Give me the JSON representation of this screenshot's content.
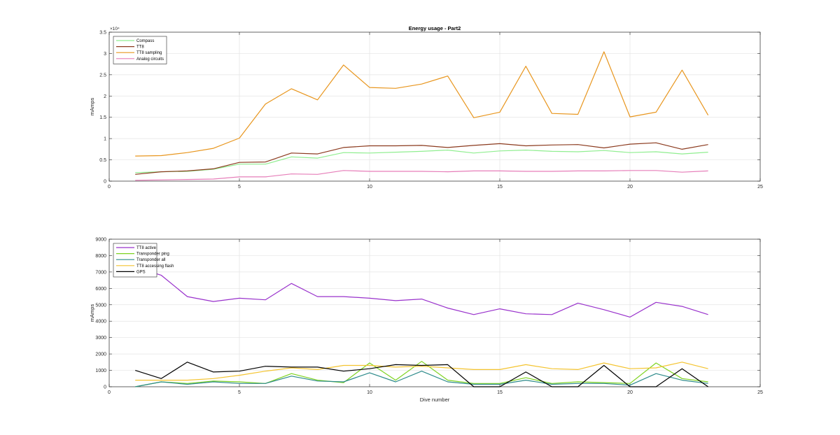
{
  "chart_data": [
    {
      "type": "line",
      "title": "Energy usage - Part2",
      "xlabel": "",
      "ylabel": "mAmps",
      "xlim": [
        0,
        25
      ],
      "ylim": [
        0,
        35000
      ],
      "xticks": [
        0,
        5,
        10,
        15,
        20,
        25
      ],
      "yticks": [
        0,
        5000,
        10000,
        15000,
        20000,
        25000,
        30000,
        35000
      ],
      "ytick_labels": [
        "0",
        "0.5",
        "1",
        "1.5",
        "2",
        "2.5",
        "3",
        "3.5"
      ],
      "y_exponent_label": "×10⁴",
      "grid": true,
      "legend_position": "top-left",
      "x": [
        1,
        2,
        3,
        4,
        5,
        6,
        7,
        8,
        9,
        10,
        11,
        12,
        13,
        14,
        15,
        16,
        17,
        18,
        19,
        20,
        21,
        22,
        23
      ],
      "series": [
        {
          "name": "Compass",
          "color": "#90ee90",
          "values": [
            2000,
            2200,
            2300,
            2800,
            4000,
            4000,
            5700,
            5400,
            6700,
            6600,
            6800,
            7000,
            7300,
            6600,
            7100,
            7300,
            7000,
            6900,
            7200,
            6700,
            6900,
            6400,
            6800
          ]
        },
        {
          "name": "TT8",
          "color": "#8b3a1e",
          "values": [
            1600,
            2200,
            2400,
            2900,
            4400,
            4500,
            6600,
            6400,
            7900,
            8300,
            8300,
            8400,
            7900,
            8400,
            8800,
            8300,
            8500,
            8600,
            7800,
            8700,
            9000,
            7500,
            8600
          ]
        },
        {
          "name": "TT8 sampling",
          "color": "#e8961e",
          "values": [
            5900,
            6000,
            6700,
            7700,
            10100,
            18100,
            21700,
            19100,
            27300,
            22000,
            21800,
            22800,
            24700,
            14900,
            16200,
            27000,
            15900,
            15700,
            30400,
            15100,
            16200,
            26100,
            15500
          ]
        },
        {
          "name": "Analog circuits",
          "color": "#e67eb9",
          "values": [
            200,
            300,
            400,
            500,
            1000,
            1000,
            1700,
            1600,
            2500,
            2300,
            2300,
            2300,
            2200,
            2400,
            2400,
            2300,
            2300,
            2400,
            2400,
            2500,
            2500,
            2100,
            2400
          ]
        }
      ]
    },
    {
      "type": "line",
      "title": "",
      "xlabel": "Dive number",
      "ylabel": "mAmps",
      "xlim": [
        0,
        25
      ],
      "ylim": [
        0,
        9000
      ],
      "xticks": [
        0,
        5,
        10,
        15,
        20,
        25
      ],
      "yticks": [
        0,
        1000,
        2000,
        3000,
        4000,
        5000,
        6000,
        7000,
        8000,
        9000
      ],
      "ytick_labels": [
        "0",
        "1000",
        "2000",
        "3000",
        "4000",
        "5000",
        "6000",
        "7000",
        "8000",
        "9000"
      ],
      "grid": true,
      "legend_position": "top-left",
      "x": [
        1,
        2,
        3,
        4,
        5,
        6,
        7,
        8,
        9,
        10,
        11,
        12,
        13,
        14,
        15,
        16,
        17,
        18,
        19,
        20,
        21,
        22,
        23
      ],
      "series": [
        {
          "name": "TT8 active",
          "color": "#9932cc",
          "values": [
            7300,
            6800,
            5500,
            5200,
            5400,
            5300,
            6300,
            5500,
            5500,
            5400,
            5250,
            5350,
            4800,
            4400,
            4750,
            4450,
            4400,
            5100,
            4700,
            4250,
            5150,
            4900,
            4400
          ]
        },
        {
          "name": "Transponder ping",
          "color": "#7ed321",
          "values": [
            0,
            300,
            200,
            350,
            300,
            200,
            800,
            400,
            250,
            1450,
            400,
            1550,
            400,
            200,
            200,
            550,
            200,
            300,
            250,
            200,
            1450,
            500,
            300
          ]
        },
        {
          "name": "Transponder all",
          "color": "#2e8b8b",
          "values": [
            0,
            300,
            150,
            300,
            200,
            200,
            650,
            350,
            300,
            850,
            300,
            950,
            300,
            150,
            150,
            400,
            150,
            200,
            200,
            100,
            800,
            400,
            200
          ]
        },
        {
          "name": "TT8 accessing flash",
          "color": "#f4c430",
          "values": [
            400,
            400,
            400,
            500,
            700,
            950,
            1150,
            1050,
            1300,
            1300,
            1200,
            1250,
            1150,
            1050,
            1050,
            1350,
            1100,
            1050,
            1450,
            1100,
            1150,
            1500,
            1100
          ]
        },
        {
          "name": "GPS",
          "color": "#000000",
          "values": [
            1000,
            500,
            1500,
            900,
            950,
            1250,
            1200,
            1200,
            950,
            1100,
            1350,
            1300,
            1350,
            0,
            0,
            900,
            0,
            0,
            1300,
            0,
            0,
            1100,
            0
          ]
        }
      ]
    }
  ]
}
